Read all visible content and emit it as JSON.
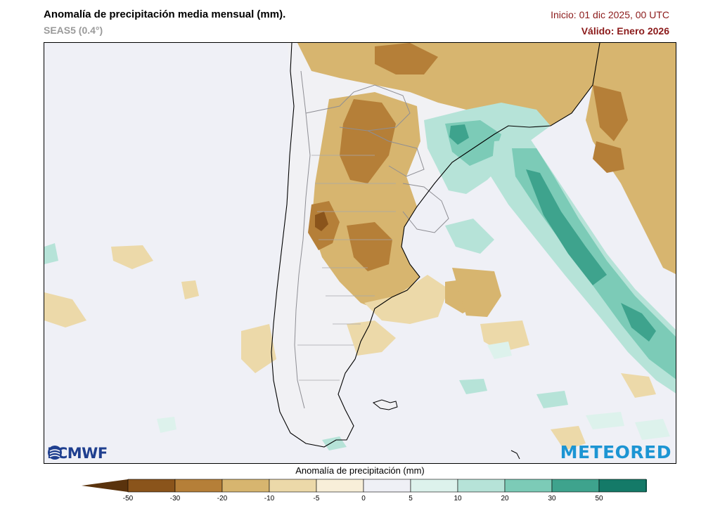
{
  "header": {
    "title": "Anomalía de precipitación media mensual (mm).",
    "subtitle": "SEAS5 (0.4°)",
    "init": "Inicio: 01 dic 2025, 00 UTC",
    "valid": "Válido: Enero 2026"
  },
  "logos": {
    "left": "ECMWF",
    "right": "METEORED"
  },
  "legend": {
    "title": "Anomalía de precipitación (mm)",
    "ticks": [
      "-50",
      "-30",
      "-20",
      "-10",
      "-5",
      "0",
      "5",
      "10",
      "20",
      "30",
      "50"
    ],
    "colors": [
      "#5a330d",
      "#8a541b",
      "#b57f38",
      "#d7b56f",
      "#ecd9a9",
      "#f8efd9",
      "#eff0f6",
      "#ddf2ec",
      "#b6e3d8",
      "#7ccbb7",
      "#3ea38d",
      "#147a68",
      "#064b40"
    ]
  }
}
